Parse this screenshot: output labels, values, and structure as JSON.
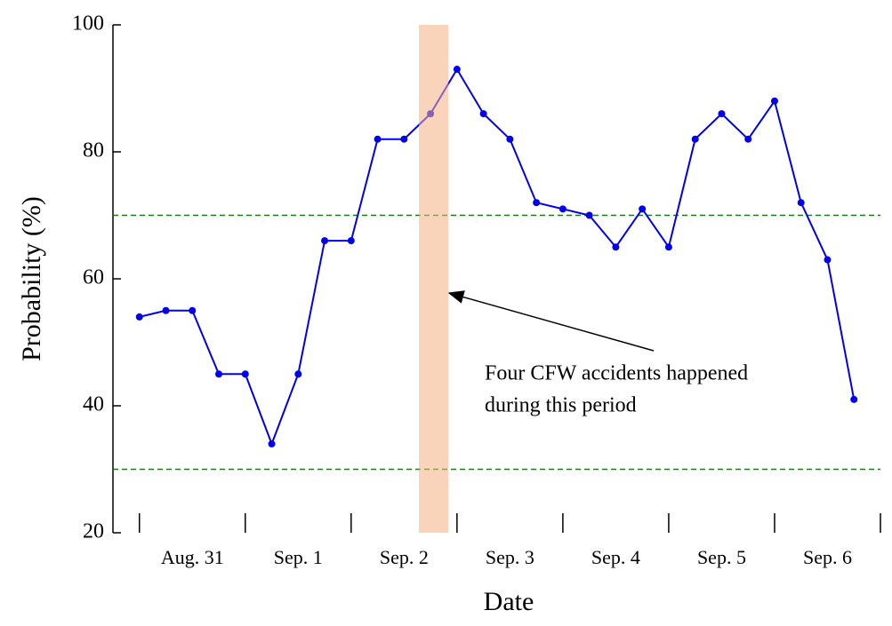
{
  "chart_data": {
    "type": "line",
    "x_label": "Date",
    "y_label": "Probability (%)",
    "x": [
      0,
      0.25,
      0.5,
      0.75,
      1,
      1.25,
      1.5,
      1.75,
      2,
      2.25,
      2.5,
      2.75,
      3,
      3.25,
      3.5,
      3.75,
      4,
      4.25,
      4.5,
      4.75,
      5,
      5.25,
      5.5,
      5.75,
      6,
      6.25,
      6.5,
      6.75
    ],
    "series": [
      {
        "color": "#0000ee",
        "values": [
          54,
          55,
          55,
          45,
          45,
          34,
          45,
          66,
          66,
          82,
          82,
          86,
          93,
          86,
          82,
          72,
          71,
          70,
          65,
          71,
          65,
          82,
          86,
          82,
          88,
          72,
          63,
          41
        ]
      }
    ],
    "xlim": [
      -0.25,
      7
    ],
    "ylim": [
      20,
      100
    ],
    "yticks": [
      20,
      40,
      60,
      80,
      100
    ],
    "xticks": [
      {
        "value": 0.5,
        "label": "Aug. 31"
      },
      {
        "value": 1.5,
        "label": "Sep. 1"
      },
      {
        "value": 2.5,
        "label": "Sep. 2"
      },
      {
        "value": 3.5,
        "label": "Sep. 3"
      },
      {
        "value": 4.5,
        "label": "Sep. 4"
      },
      {
        "value": 5.5,
        "label": "Sep. 5"
      },
      {
        "value": 6.5,
        "label": "Sep. 6"
      }
    ],
    "x_day_ticks": [
      0,
      1,
      2,
      3,
      4,
      5,
      6,
      7
    ],
    "threshold_lines": {
      "color": "#1a7a1a",
      "values": [
        70,
        30
      ]
    },
    "shaded_period": {
      "color": "#f4b183",
      "x": [
        2.64,
        2.92
      ]
    },
    "annotation": [
      "Four CFW accidents happened",
      "during this period"
    ]
  }
}
